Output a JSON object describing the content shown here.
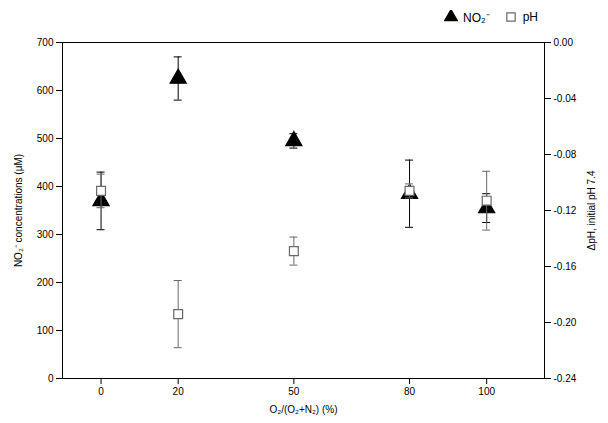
{
  "chart_data": {
    "type": "scatter",
    "xlabel": "O₂/(O₂+N₂) (%)",
    "ylabel": "NO₂⁻ concentrations (μM)",
    "y2label": "ΔpH, initial pH 7.4",
    "x": [
      0,
      20,
      50,
      80,
      100
    ],
    "xlim": [
      -10,
      115
    ],
    "xticks": [
      0,
      20,
      50,
      80,
      100
    ],
    "ylim": [
      0,
      700
    ],
    "yticks": [
      0,
      100,
      200,
      300,
      400,
      500,
      600,
      700
    ],
    "y2lim": [
      -0.24,
      0.0
    ],
    "y2ticks": [
      {
        "value": 0.0,
        "label": "0.00"
      },
      {
        "value": -0.04,
        "label": "-0.04"
      },
      {
        "value": -0.08,
        "label": "-0.08"
      },
      {
        "value": -0.12,
        "label": "-0.12"
      },
      {
        "value": -0.16,
        "label": "-0.16"
      },
      {
        "value": -0.2,
        "label": "-0.20"
      },
      {
        "value": -0.24,
        "label": "-0.24"
      }
    ],
    "series": [
      {
        "name": "NO₂⁻",
        "color": "black",
        "marker": "triangle",
        "values": [
          370,
          625,
          495,
          385,
          355
        ],
        "yerr": [
          60,
          45,
          15,
          70,
          30
        ]
      },
      {
        "name": "pH",
        "color": "dimgray",
        "marker": "square",
        "axis": "y2",
        "values": [
          -0.106,
          -0.194,
          -0.149,
          -0.106,
          -0.113
        ],
        "yerr": [
          0.012,
          0.024,
          0.01,
          0.005,
          0.021
        ]
      }
    ],
    "legend": "upper right",
    "grid": false
  }
}
